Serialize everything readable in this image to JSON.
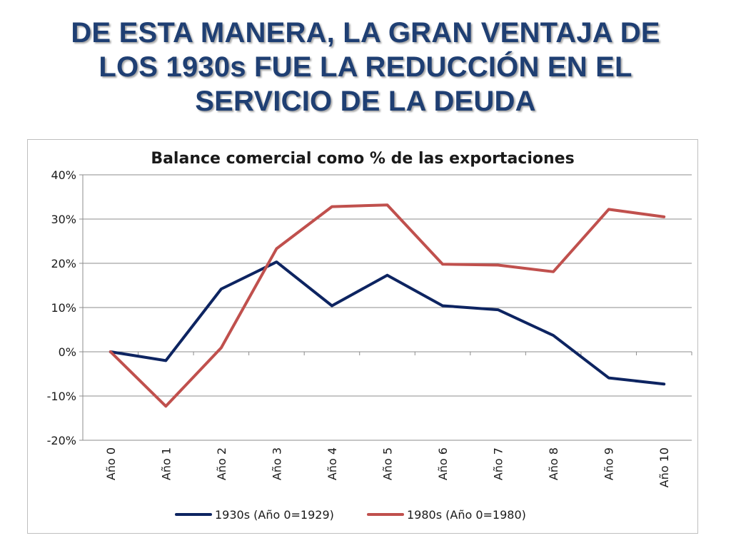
{
  "slide": {
    "title_lines": [
      "DE ESTA MANERA, LA GRAN VENTAJA DE",
      "LOS 1930s FUE LA REDUCCIÓN EN EL",
      "SERVICIO DE LA DEUDA"
    ]
  },
  "chart_data": {
    "type": "line",
    "title": "Balance comercial como % de las exportaciones",
    "categories": [
      "Año 0",
      "Año 1",
      "Año 2",
      "Año 3",
      "Año 4",
      "Año 5",
      "Año 6",
      "Año 7",
      "Año 8",
      "Año 9",
      "Año 10"
    ],
    "y_ticks": [
      -20,
      -10,
      0,
      10,
      20,
      30,
      40
    ],
    "y_tick_labels": [
      "-20%",
      "-10%",
      "0%",
      "10%",
      "20%",
      "30%",
      "40%"
    ],
    "ylim": [
      -20,
      40
    ],
    "grid": true,
    "legend_position": "bottom",
    "series": [
      {
        "name": "1930s (Año 0=1929)",
        "color": "#0d2461",
        "values": [
          0,
          -2,
          14.2,
          20.3,
          10.4,
          17.3,
          10.4,
          9.5,
          3.7,
          -5.9,
          -7.3
        ]
      },
      {
        "name": "1980s (Año 0=1980)",
        "color": "#c0504d",
        "values": [
          0,
          -12.3,
          0.9,
          23.3,
          32.8,
          33.2,
          19.8,
          19.6,
          18.1,
          32.2,
          30.5
        ]
      }
    ]
  }
}
